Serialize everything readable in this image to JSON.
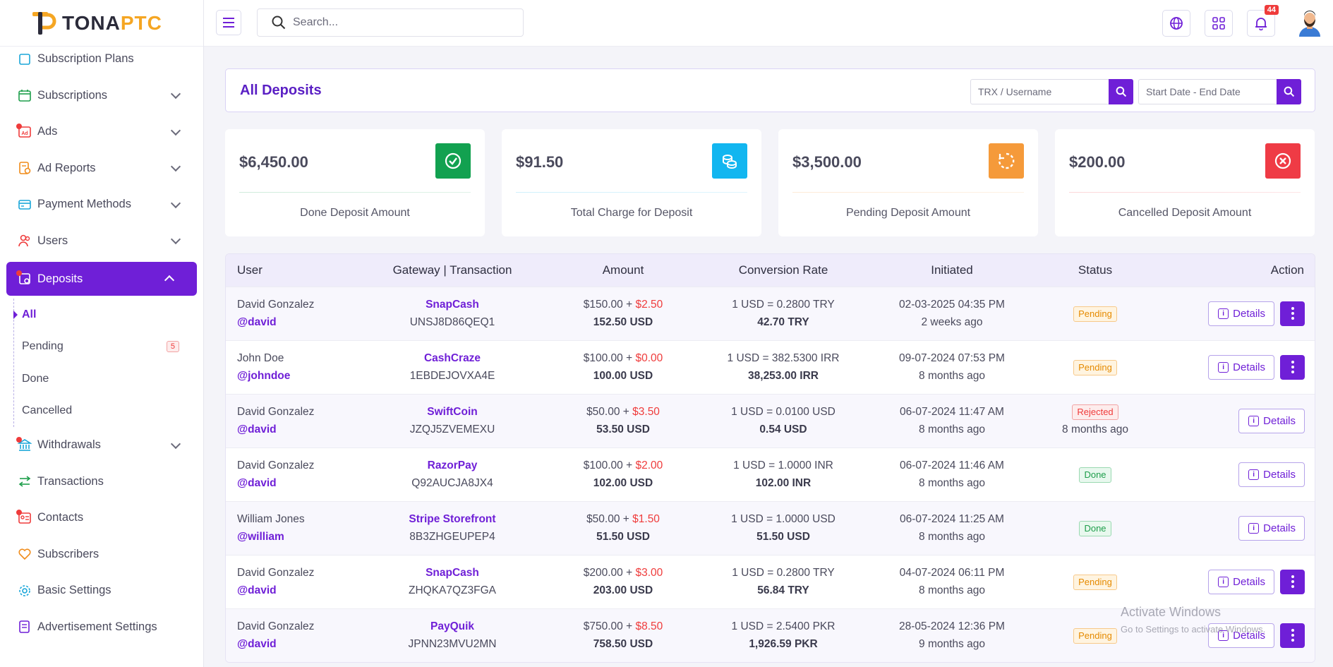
{
  "brand": {
    "name_main": "TONA",
    "name_accent": "PTC"
  },
  "topbar": {
    "search_placeholder": "Search...",
    "notifications_count": "44"
  },
  "sidebar": {
    "items": [
      {
        "label": "Subscription Plans",
        "icon": "plans-icon",
        "color": "#1aa6d9",
        "dot": false,
        "chevron": false
      },
      {
        "label": "Subscriptions",
        "icon": "calendar-icon",
        "color": "#1e9e4b",
        "dot": false,
        "chevron": true
      },
      {
        "label": "Ads",
        "icon": "ad-icon",
        "color": "#ef3b3b",
        "dot": true,
        "chevron": true
      },
      {
        "label": "Ad Reports",
        "icon": "report-icon",
        "color": "#f08c1a",
        "dot": false,
        "chevron": true
      },
      {
        "label": "Payment Methods",
        "icon": "card-icon",
        "color": "#1aa6d9",
        "dot": false,
        "chevron": true
      },
      {
        "label": "Users",
        "icon": "users-icon",
        "color": "#ef3b3b",
        "dot": false,
        "chevron": true
      },
      {
        "label": "Deposits",
        "icon": "deposit-icon",
        "color": "#ffffff",
        "dot": true,
        "chevron": true,
        "active": true
      }
    ],
    "deposit_submenu": [
      {
        "label": "All",
        "current": true
      },
      {
        "label": "Pending",
        "badge": "5"
      },
      {
        "label": "Done"
      },
      {
        "label": "Cancelled"
      }
    ],
    "items_after": [
      {
        "label": "Withdrawals",
        "icon": "bank-icon",
        "color": "#1aa6d9",
        "dot": true,
        "chevron": true
      },
      {
        "label": "Transactions",
        "icon": "arrows-icon",
        "color": "#1e9e4b",
        "dot": false,
        "chevron": false
      },
      {
        "label": "Contacts",
        "icon": "contact-icon",
        "color": "#ef3b3b",
        "dot": true,
        "chevron": false
      },
      {
        "label": "Subscribers",
        "icon": "heart-icon",
        "color": "#f08c1a",
        "dot": false,
        "chevron": false
      },
      {
        "label": "Basic Settings",
        "icon": "gear-icon",
        "color": "#1aa6d9",
        "dot": false,
        "chevron": false
      },
      {
        "label": "Advertisement Settings",
        "icon": "settings-doc-icon",
        "color": "#6f1fd7",
        "dot": false,
        "chevron": false
      }
    ]
  },
  "page": {
    "title": "All Deposits",
    "trx_placeholder": "TRX / Username",
    "date_placeholder": "Start Date - End Date"
  },
  "cards": [
    {
      "amount": "$6,450.00",
      "label": "Done Deposit Amount",
      "icon": "check-circle-icon",
      "color": "#12a150"
    },
    {
      "amount": "$91.50",
      "label": "Total Charge for Deposit",
      "icon": "coins-icon",
      "color": "#12b6f0"
    },
    {
      "amount": "$3,500.00",
      "label": "Pending Deposit Amount",
      "icon": "spinner-icon",
      "color": "#f59a3a"
    },
    {
      "amount": "$200.00",
      "label": "Cancelled Deposit Amount",
      "icon": "x-circle-icon",
      "color": "#ef3b45"
    }
  ],
  "table": {
    "headers": [
      "User",
      "Gateway | Transaction",
      "Amount",
      "Conversion Rate",
      "Initiated",
      "Status",
      "Action"
    ],
    "details_label": "Details",
    "rows": [
      {
        "name": "David Gonzalez",
        "handle": "@david",
        "gateway": "SnapCash",
        "trx": "UNSJ8D86QEQ1",
        "amount": "$150.00 + ",
        "charge": "$2.50",
        "total": "152.50 USD",
        "rate": "1 USD = 0.2800 TRY",
        "converted": "42.70 TRY",
        "date": "02-03-2025 04:35 PM",
        "ago": "2 weeks ago",
        "status": "Pending",
        "status_ago": "",
        "more": true
      },
      {
        "name": "John Doe",
        "handle": "@johndoe",
        "gateway": "CashCraze",
        "trx": "1EBDEJOVXA4E",
        "amount": "$100.00 + ",
        "charge": "$0.00",
        "total": "100.00 USD",
        "rate": "1 USD = 382.5300 IRR",
        "converted": "38,253.00 IRR",
        "date": "09-07-2024 07:53 PM",
        "ago": "8 months ago",
        "status": "Pending",
        "status_ago": "",
        "more": true
      },
      {
        "name": "David Gonzalez",
        "handle": "@david",
        "gateway": "SwiftCoin",
        "trx": "JZQJ5ZVEMEXU",
        "amount": "$50.00 + ",
        "charge": "$3.50",
        "total": "53.50 USD",
        "rate": "1 USD = 0.0100 USD",
        "converted": "0.54 USD",
        "date": "06-07-2024 11:47 AM",
        "ago": "8 months ago",
        "status": "Rejected",
        "status_ago": "8 months ago",
        "more": false
      },
      {
        "name": "David Gonzalez",
        "handle": "@david",
        "gateway": "RazorPay",
        "trx": "Q92AUCJA8JX4",
        "amount": "$100.00 + ",
        "charge": "$2.00",
        "total": "102.00 USD",
        "rate": "1 USD = 1.0000 INR",
        "converted": "102.00 INR",
        "date": "06-07-2024 11:46 AM",
        "ago": "8 months ago",
        "status": "Done",
        "status_ago": "",
        "more": false
      },
      {
        "name": "William Jones",
        "handle": "@william",
        "gateway": "Stripe Storefront",
        "trx": "8B3ZHGEUPEP4",
        "amount": "$50.00 + ",
        "charge": "$1.50",
        "total": "51.50 USD",
        "rate": "1 USD = 1.0000 USD",
        "converted": "51.50 USD",
        "date": "06-07-2024 11:25 AM",
        "ago": "8 months ago",
        "status": "Done",
        "status_ago": "",
        "more": false
      },
      {
        "name": "David Gonzalez",
        "handle": "@david",
        "gateway": "SnapCash",
        "trx": "ZHQKA7QZ3FGA",
        "amount": "$200.00 + ",
        "charge": "$3.00",
        "total": "203.00 USD",
        "rate": "1 USD = 0.2800 TRY",
        "converted": "56.84 TRY",
        "date": "04-07-2024 06:11 PM",
        "ago": "8 months ago",
        "status": "Pending",
        "status_ago": "",
        "more": true
      },
      {
        "name": "David Gonzalez",
        "handle": "@david",
        "gateway": "PayQuik",
        "trx": "JPNN23MVU2MN",
        "amount": "$750.00 + ",
        "charge": "$8.50",
        "total": "758.50 USD",
        "rate": "1 USD = 2.5400 PKR",
        "converted": "1,926.59 PKR",
        "date": "28-05-2024 12:36 PM",
        "ago": "9 months ago",
        "status": "Pending",
        "status_ago": "",
        "more": true
      }
    ]
  },
  "watermark": {
    "line1": "Activate Windows",
    "line2": "Go to Settings to activate Windows."
  }
}
